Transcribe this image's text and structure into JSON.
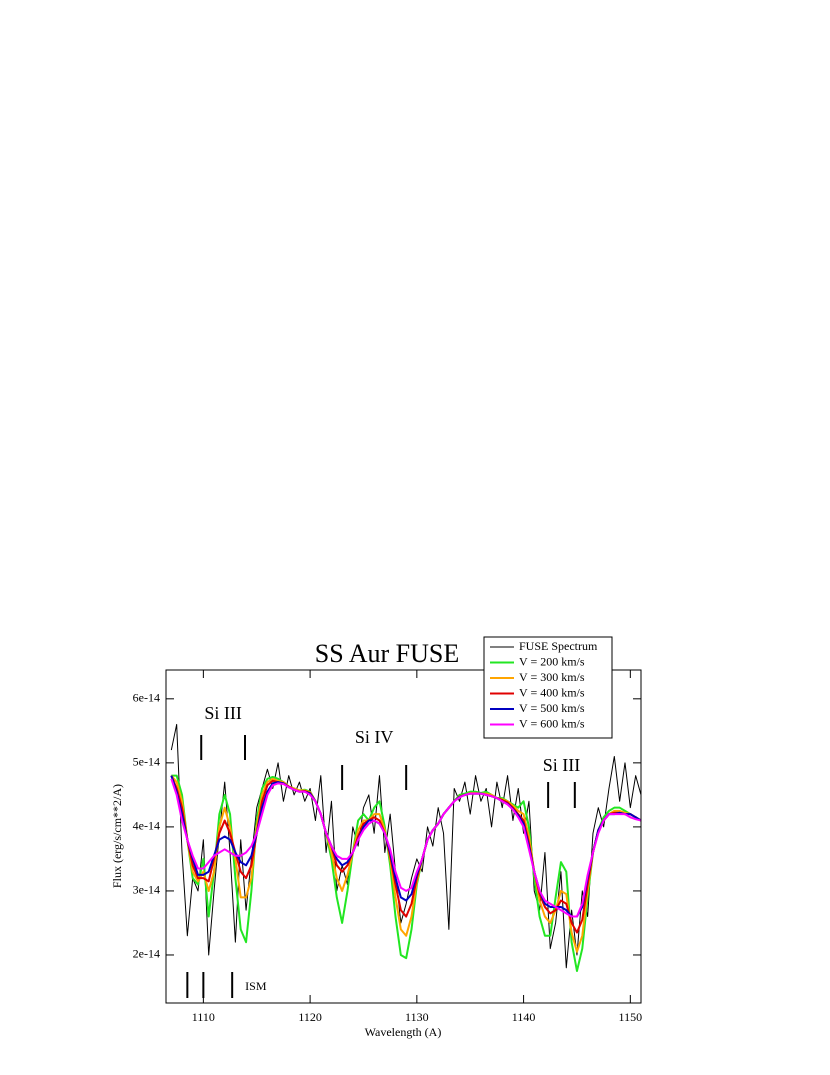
{
  "chart_data": {
    "type": "line",
    "title": "SS Aur   FUSE",
    "x_label": "Wavelength (A)",
    "y_label": "Flux (erg/s/cm**2/A)",
    "xlim": [
      1106.5,
      1151
    ],
    "xticks": [
      1110,
      1120,
      1130,
      1140,
      1150
    ],
    "ylim": [
      1.25e-14,
      6.45e-14
    ],
    "yticks": [
      2e-14,
      3e-14,
      4e-14,
      5e-14,
      6e-14
    ],
    "x": [
      1107,
      1107.5,
      1108,
      1108.5,
      1109,
      1109.5,
      1110,
      1110.5,
      1111,
      1111.5,
      1112,
      1112.5,
      1113,
      1113.5,
      1114,
      1114.5,
      1115,
      1115.5,
      1116,
      1116.5,
      1117,
      1117.5,
      1118,
      1118.5,
      1119,
      1119.5,
      1120,
      1120.5,
      1121,
      1121.5,
      1122,
      1122.5,
      1123,
      1123.5,
      1124,
      1124.5,
      1125,
      1125.5,
      1126,
      1126.5,
      1127,
      1127.5,
      1128,
      1128.5,
      1129,
      1129.5,
      1130,
      1130.5,
      1131,
      1131.5,
      1132,
      1132.5,
      1133,
      1133.5,
      1134,
      1134.5,
      1135,
      1135.5,
      1136,
      1136.5,
      1137,
      1137.5,
      1138,
      1138.5,
      1139,
      1139.5,
      1140,
      1140.5,
      1141,
      1141.5,
      1142,
      1142.5,
      1143,
      1143.5,
      1144,
      1144.5,
      1145,
      1145.5,
      1146,
      1146.5,
      1147,
      1147.5,
      1148,
      1148.5,
      1149,
      1149.5,
      1150,
      1150.5,
      1151
    ],
    "series": [
      {
        "name": "FUSE Spectrum",
        "color": "#000000",
        "values": [
          5.2e-14,
          5.6e-14,
          3.6e-14,
          2.3e-14,
          3.2e-14,
          3e-14,
          3.8e-14,
          2e-14,
          3e-14,
          3.9e-14,
          4.7e-14,
          3.6e-14,
          2.2e-14,
          3.8e-14,
          2.7e-14,
          3.5e-14,
          4.3e-14,
          4.6e-14,
          4.9e-14,
          4.6e-14,
          5e-14,
          4.4e-14,
          4.8e-14,
          4.5e-14,
          4.7e-14,
          4.4e-14,
          4.6e-14,
          4.1e-14,
          4.8e-14,
          3.6e-14,
          4.4e-14,
          3e-14,
          3.4e-14,
          3.1e-14,
          4e-14,
          3.7e-14,
          4.3e-14,
          4.5e-14,
          3.9e-14,
          4.8e-14,
          3.6e-14,
          4.2e-14,
          3.3e-14,
          2.5e-14,
          2.8e-14,
          3.2e-14,
          3.5e-14,
          3.3e-14,
          4e-14,
          3.7e-14,
          4.3e-14,
          3.9e-14,
          2.4e-14,
          4.6e-14,
          4.4e-14,
          4.7e-14,
          4.2e-14,
          4.8e-14,
          4.4e-14,
          4.6e-14,
          4e-14,
          4.7e-14,
          4.3e-14,
          4.8e-14,
          4.1e-14,
          4.6e-14,
          3.9e-14,
          4.4e-14,
          3e-14,
          2.7e-14,
          3.6e-14,
          2.1e-14,
          2.5e-14,
          3.3e-14,
          1.8e-14,
          2.7e-14,
          2e-14,
          3e-14,
          2.6e-14,
          3.9e-14,
          4.3e-14,
          4e-14,
          4.6e-14,
          5.1e-14,
          4.4e-14,
          5e-14,
          4.3e-14,
          4.8e-14,
          4.5e-14
        ]
      },
      {
        "name": "V = 200 km/s",
        "color": "#22e622",
        "values": [
          4.8e-14,
          4.8e-14,
          4.5e-14,
          3.8e-14,
          3.2e-14,
          3.1e-14,
          3.5e-14,
          2.6e-14,
          3.3e-14,
          4.2e-14,
          4.5e-14,
          4.2e-14,
          3.2e-14,
          2.4e-14,
          2.2e-14,
          3e-14,
          4.1e-14,
          4.6e-14,
          4.75e-14,
          4.78e-14,
          4.75e-14,
          4.7e-14,
          4.63e-14,
          4.6e-14,
          4.57e-14,
          4.58e-14,
          4.55e-14,
          4.4e-14,
          4.2e-14,
          3.9e-14,
          3.5e-14,
          2.9e-14,
          2.5e-14,
          3e-14,
          3.6e-14,
          4.1e-14,
          4.2e-14,
          4.1e-14,
          4.3e-14,
          4.4e-14,
          4e-14,
          3.4e-14,
          2.6e-14,
          2e-14,
          1.95e-14,
          2.4e-14,
          3.1e-14,
          3.5e-14,
          3.8e-14,
          3.95e-14,
          4.05e-14,
          4.2e-14,
          4.3e-14,
          4.4e-14,
          4.5e-14,
          4.52e-14,
          4.55e-14,
          4.55e-14,
          4.53e-14,
          4.55e-14,
          4.5e-14,
          4.45e-14,
          4.45e-14,
          4.4e-14,
          4.35e-14,
          4.3e-14,
          4.4e-14,
          4e-14,
          3.2e-14,
          2.6e-14,
          2.3e-14,
          2.3e-14,
          2.9e-14,
          3.45e-14,
          3.3e-14,
          2.2e-14,
          1.75e-14,
          2.1e-14,
          2.9e-14,
          3.6e-14,
          3.95e-14,
          4.15e-14,
          4.25e-14,
          4.3e-14,
          4.3e-14,
          4.25e-14,
          4.2e-14,
          4.15e-14,
          4.1e-14
        ]
      },
      {
        "name": "V = 300 km/s",
        "color": "#ffa500",
        "values": [
          4.8e-14,
          4.7e-14,
          4.4e-14,
          3.8e-14,
          3.3e-14,
          3.15e-14,
          3.3e-14,
          3e-14,
          3.3e-14,
          4e-14,
          4.3e-14,
          4e-14,
          3.5e-14,
          2.9e-14,
          2.9e-14,
          3.2e-14,
          4e-14,
          4.5e-14,
          4.7e-14,
          4.75e-14,
          4.72e-14,
          4.7e-14,
          4.63e-14,
          4.6e-14,
          4.57e-14,
          4.57e-14,
          4.54e-14,
          4.4e-14,
          4.2e-14,
          3.9e-14,
          3.6e-14,
          3.2e-14,
          3e-14,
          3.25e-14,
          3.6e-14,
          3.95e-14,
          4.1e-14,
          4.1e-14,
          4.2e-14,
          4.2e-14,
          3.95e-14,
          3.5e-14,
          2.9e-14,
          2.4e-14,
          2.3e-14,
          2.6e-14,
          3.15e-14,
          3.5e-14,
          3.8e-14,
          3.95e-14,
          4.05e-14,
          4.2e-14,
          4.3e-14,
          4.4e-14,
          4.48e-14,
          4.5e-14,
          4.53e-14,
          4.53e-14,
          4.52e-14,
          4.52e-14,
          4.5e-14,
          4.45e-14,
          4.43e-14,
          4.4e-14,
          4.33e-14,
          4.25e-14,
          4.2e-14,
          3.85e-14,
          3.3e-14,
          2.85e-14,
          2.6e-14,
          2.5e-14,
          2.7e-14,
          3e-14,
          2.95e-14,
          2.35e-14,
          2.05e-14,
          2.3e-14,
          3e-14,
          3.6e-14,
          3.95e-14,
          4.1e-14,
          4.2e-14,
          4.25e-14,
          4.25e-14,
          4.22e-14,
          4.2e-14,
          4.15e-14,
          4.1e-14
        ]
      },
      {
        "name": "V = 400 km/s",
        "color": "#e00000",
        "values": [
          4.8e-14,
          4.6e-14,
          4.3e-14,
          3.8e-14,
          3.4e-14,
          3.2e-14,
          3.2e-14,
          3.15e-14,
          3.5e-14,
          3.9e-14,
          4.1e-14,
          3.9e-14,
          3.6e-14,
          3.3e-14,
          3.2e-14,
          3.4e-14,
          3.9e-14,
          4.4e-14,
          4.65e-14,
          4.72e-14,
          4.7e-14,
          4.68e-14,
          4.63e-14,
          4.58e-14,
          4.55e-14,
          4.56e-14,
          4.53e-14,
          4.4e-14,
          4.2e-14,
          3.9e-14,
          3.7e-14,
          3.4e-14,
          3.3e-14,
          3.4e-14,
          3.6e-14,
          3.85e-14,
          4.05e-14,
          4.1e-14,
          4.15e-14,
          4.1e-14,
          3.9e-14,
          3.55e-14,
          3.1e-14,
          2.7e-14,
          2.6e-14,
          2.8e-14,
          3.2e-14,
          3.5e-14,
          3.8e-14,
          3.95e-14,
          4.05e-14,
          4.2e-14,
          4.3e-14,
          4.4e-14,
          4.47e-14,
          4.5e-14,
          4.52e-14,
          4.52e-14,
          4.52e-14,
          4.5e-14,
          4.48e-14,
          4.45e-14,
          4.42e-14,
          4.38e-14,
          4.3e-14,
          4.2e-14,
          4.1e-14,
          3.75e-14,
          3.3e-14,
          2.95e-14,
          2.75e-14,
          2.65e-14,
          2.7e-14,
          2.85e-14,
          2.8e-14,
          2.5e-14,
          2.35e-14,
          2.55e-14,
          3.1e-14,
          3.6e-14,
          3.95e-14,
          4.1e-14,
          4.2e-14,
          4.22e-14,
          4.22e-14,
          4.2e-14,
          4.2e-14,
          4.15e-14,
          4.1e-14
        ]
      },
      {
        "name": "V = 500 km/s",
        "color": "#0000c0",
        "values": [
          4.8e-14,
          4.55e-14,
          4.2e-14,
          3.8e-14,
          3.5e-14,
          3.25e-14,
          3.25e-14,
          3.3e-14,
          3.55e-14,
          3.8e-14,
          3.85e-14,
          3.8e-14,
          3.6e-14,
          3.45e-14,
          3.4e-14,
          3.55e-14,
          3.9e-14,
          4.3e-14,
          4.55e-14,
          4.68e-14,
          4.7e-14,
          4.68e-14,
          4.62e-14,
          4.58e-14,
          4.55e-14,
          4.55e-14,
          4.52e-14,
          4.4e-14,
          4.2e-14,
          3.9e-14,
          3.7e-14,
          3.5e-14,
          3.4e-14,
          3.45e-14,
          3.6e-14,
          3.8e-14,
          4e-14,
          4.1e-14,
          4.1e-14,
          4.05e-14,
          3.9e-14,
          3.6e-14,
          3.2e-14,
          2.9e-14,
          2.85e-14,
          2.95e-14,
          3.25e-14,
          3.5e-14,
          3.8e-14,
          3.95e-14,
          4.05e-14,
          4.2e-14,
          4.3e-14,
          4.4e-14,
          4.47e-14,
          4.5e-14,
          4.52e-14,
          4.52e-14,
          4.52e-14,
          4.5e-14,
          4.48e-14,
          4.45e-14,
          4.4e-14,
          4.36e-14,
          4.28e-14,
          4.18e-14,
          4.05e-14,
          3.7e-14,
          3.3e-14,
          3e-14,
          2.8e-14,
          2.75e-14,
          2.75e-14,
          2.75e-14,
          2.7e-14,
          2.6e-14,
          2.6e-14,
          2.75e-14,
          3.2e-14,
          3.6e-14,
          3.95e-14,
          4.1e-14,
          4.2e-14,
          4.2e-14,
          4.22e-14,
          4.2e-14,
          4.2e-14,
          4.15e-14,
          4.1e-14
        ]
      },
      {
        "name": "V = 600 km/s",
        "color": "#ff00ff",
        "values": [
          4.75e-14,
          4.5e-14,
          4.1e-14,
          3.8e-14,
          3.55e-14,
          3.35e-14,
          3.35e-14,
          3.45e-14,
          3.55e-14,
          3.6e-14,
          3.65e-14,
          3.6e-14,
          3.55e-14,
          3.55e-14,
          3.6e-14,
          3.7e-14,
          3.9e-14,
          4.2e-14,
          4.5e-14,
          4.65e-14,
          4.68e-14,
          4.67e-14,
          4.62e-14,
          4.58e-14,
          4.55e-14,
          4.55e-14,
          4.5e-14,
          4.4e-14,
          4.2e-14,
          3.9e-14,
          3.7e-14,
          3.55e-14,
          3.5e-14,
          3.5e-14,
          3.6e-14,
          3.8e-14,
          3.95e-14,
          4.05e-14,
          4.1e-14,
          4.05e-14,
          3.9e-14,
          3.65e-14,
          3.3e-14,
          3.05e-14,
          3e-14,
          3.05e-14,
          3.3e-14,
          3.5e-14,
          3.8e-14,
          3.95e-14,
          4.05e-14,
          4.2e-14,
          4.3e-14,
          4.4e-14,
          4.46e-14,
          4.5e-14,
          4.52e-14,
          4.52e-14,
          4.52e-14,
          4.5e-14,
          4.48e-14,
          4.45e-14,
          4.4e-14,
          4.35e-14,
          4.27e-14,
          4.15e-14,
          4e-14,
          3.65e-14,
          3.3e-14,
          3e-14,
          2.85e-14,
          2.8e-14,
          2.75e-14,
          2.7e-14,
          2.65e-14,
          2.6e-14,
          2.6e-14,
          2.8e-14,
          3.25e-14,
          3.6e-14,
          3.9e-14,
          4.1e-14,
          4.2e-14,
          4.2e-14,
          4.2e-14,
          4.2e-14,
          4.15e-14,
          4.12e-14,
          4.1e-14
        ]
      }
    ],
    "annotations": [
      {
        "label": "Si III",
        "lines": [
          1109.8,
          1113.9
        ]
      },
      {
        "label": "Si IV",
        "lines": [
          1123,
          1129
        ]
      },
      {
        "label": "Si III",
        "lines": [
          1142.3,
          1144.8
        ]
      },
      {
        "label": "ISM",
        "lines": [
          1108.5,
          1110,
          1112.7
        ]
      }
    ]
  }
}
